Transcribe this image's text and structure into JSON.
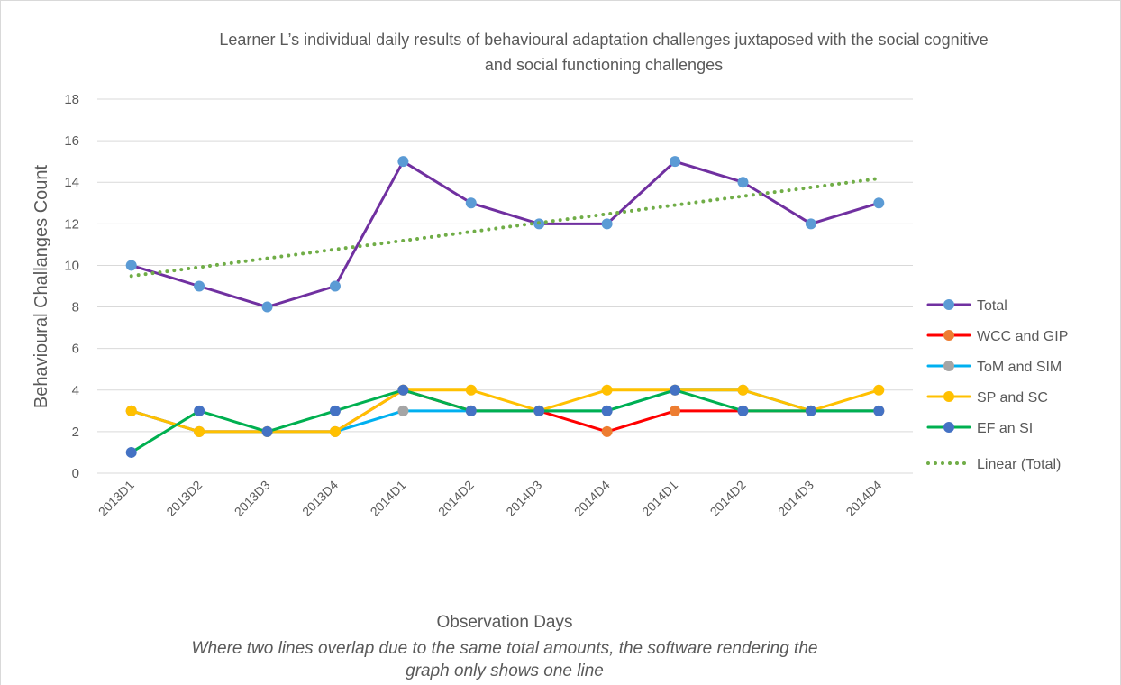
{
  "chart_data": {
    "type": "line",
    "title": "Learner L’s individual daily results of behavioural adaptation challenges juxtaposed with the social cognitive and social functioning challenges",
    "x_label": "Observation Days",
    "y_label": "Behavioural Challanges  Count",
    "note": "Where two lines overlap due to the same total amounts, the software rendering the graph only shows one line",
    "categories": [
      "2013D1",
      "2013D2",
      "2013D3",
      "2013D4",
      "2014D1",
      "2014D2",
      "2014D3",
      "2014D4",
      "2014D1",
      "2014D2",
      "2014D3",
      "2014D4"
    ],
    "series": [
      {
        "name": "Total",
        "color": "#7030a0",
        "marker_color": "#5b9bd5",
        "values": [
          10,
          9,
          8,
          9,
          15,
          13,
          12,
          12,
          15,
          14,
          12,
          13
        ]
      },
      {
        "name": "WCC and GIP",
        "color": "#ff0000",
        "marker_color": "#ed7d31",
        "values": [
          3,
          2,
          2,
          2,
          4,
          3,
          3,
          2,
          3,
          3,
          3,
          3
        ]
      },
      {
        "name": "ToM and SIM",
        "color": "#00b0f0",
        "marker_color": "#a5a5a5",
        "values": [
          3,
          2,
          2,
          2,
          3,
          3,
          3,
          3,
          4,
          4,
          3,
          3
        ]
      },
      {
        "name": "SP and SC",
        "color": "#ffc000",
        "marker_color": "#ffc000",
        "values": [
          3,
          2,
          2,
          2,
          4,
          4,
          3,
          4,
          4,
          4,
          3,
          4
        ]
      },
      {
        "name": "EF an SI",
        "color": "#00b050",
        "marker_color": "#4472c4",
        "values": [
          1,
          3,
          2,
          3,
          4,
          3,
          3,
          3,
          4,
          3,
          3,
          3
        ]
      },
      {
        "name": "Linear (Total)",
        "color": "#70ad47",
        "style": "dotted",
        "values": [
          9.49,
          9.91,
          10.34,
          10.77,
          11.19,
          11.62,
          12.05,
          12.47,
          12.9,
          13.33,
          13.75,
          14.18
        ]
      }
    ],
    "ylim": [
      0,
      18
    ],
    "yticks": [
      0,
      2,
      4,
      6,
      8,
      10,
      12,
      14,
      16,
      18
    ],
    "grid": true,
    "legend": "right"
  }
}
